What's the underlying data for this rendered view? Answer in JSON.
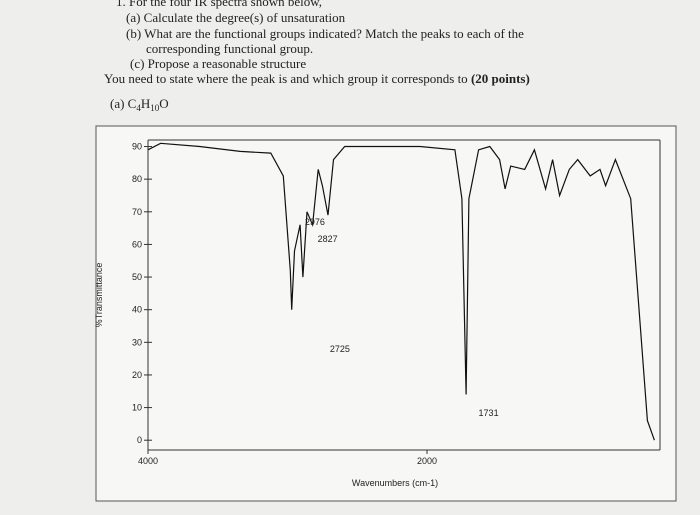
{
  "document": {
    "lines": [
      "1. For the four IR spectra shown below,",
      "(a) Calculate the degree(s) of unsaturation",
      "(b) What are the functional groups indicated? Match the peaks to each of the",
      "corresponding functional group.",
      "(c) Propose a reasonable structure"
    ],
    "instruction": "You need to state where the peak is and which group it corresponds to",
    "points": "(20 points)",
    "formula": [
      "(a) C",
      "4",
      "H",
      "10",
      "O"
    ]
  },
  "chart_data": {
    "type": "line",
    "xlabel": "Wavenumbers (cm-1)",
    "ylabel": "%Transmittance",
    "color": "#111111",
    "x": [
      4000,
      3910,
      3630,
      3340,
      3120,
      3030,
      2980,
      2970,
      2950,
      2910,
      2890,
      2860,
      2820,
      2780,
      2750,
      2710,
      2670,
      2590,
      2050,
      1800,
      1750,
      1720,
      1700,
      1630,
      1550,
      1480,
      1440,
      1400,
      1300,
      1230,
      1150,
      1100,
      1050,
      980,
      920,
      830,
      760,
      720,
      650,
      540,
      420,
      370
    ],
    "values": [
      89,
      91,
      90,
      88.5,
      88,
      81,
      52,
      40,
      58,
      66,
      50,
      70,
      66,
      83,
      78,
      69,
      86,
      90,
      90,
      89,
      74,
      14,
      74,
      89,
      90,
      86,
      77,
      84,
      83,
      89,
      77,
      86,
      75,
      83,
      86,
      81,
      83,
      78,
      86,
      74,
      6,
      0
    ],
    "annotations": [
      2976,
      2827,
      2725,
      1731
    ],
    "xlim": [
      4000,
      330
    ],
    "ylim": [
      -3,
      92
    ],
    "xticks": [
      4000,
      2000
    ],
    "yticks": [
      0,
      10,
      20,
      30,
      40,
      50,
      60,
      70,
      80,
      90
    ]
  }
}
